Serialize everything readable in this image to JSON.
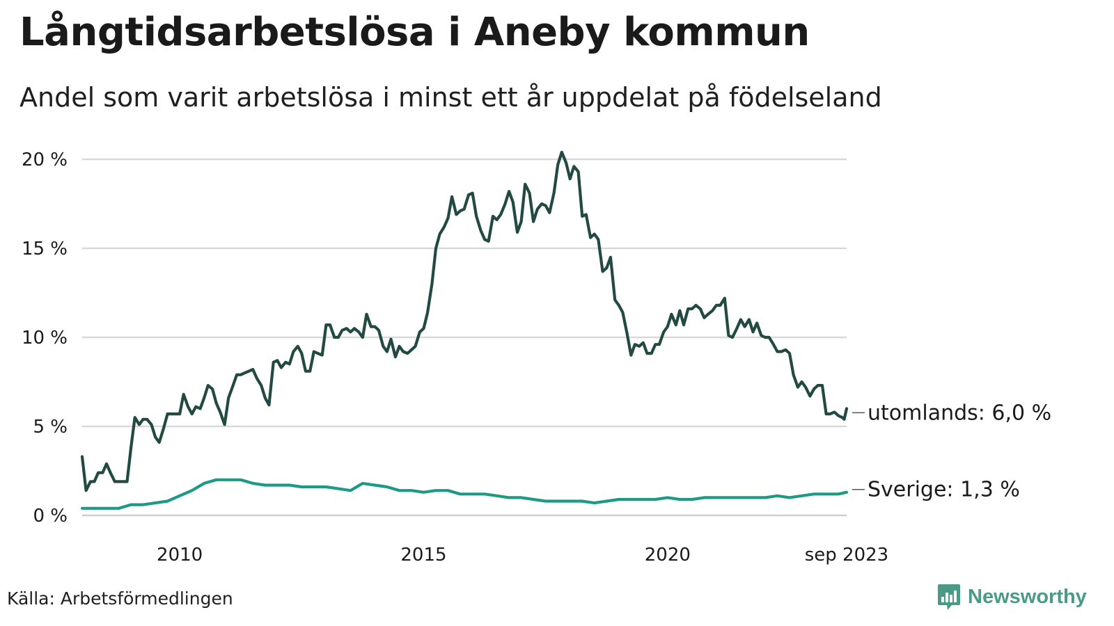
{
  "header": {
    "title": "Långtidsarbetslösa i Aneby kommun",
    "subtitle": "Andel som varit arbetslösa i minst ett år uppdelat på födelseland"
  },
  "footer": {
    "source": "Källa: Arbetsförmedlingen",
    "brand": "Newsworthy"
  },
  "colors": {
    "foreign_line": "#234a42",
    "sweden_line": "#1d9a86",
    "grid": "#d9d9d9",
    "brand": "#4a9a86"
  },
  "chart_data": {
    "type": "line",
    "title": "Långtidsarbetslösa i Aneby kommun",
    "subtitle": "Andel som varit arbetslösa i minst ett år uppdelat på födelseland",
    "xlabel": "",
    "ylabel": "",
    "xlim": [
      2008.0,
      2023.67
    ],
    "ylim": [
      0,
      20
    ],
    "grid": true,
    "y_ticks": [
      {
        "value": 0,
        "label": "0 %"
      },
      {
        "value": 5,
        "label": "5 %"
      },
      {
        "value": 10,
        "label": "10 %"
      },
      {
        "value": 15,
        "label": "15 %"
      },
      {
        "value": 20,
        "label": "20 %"
      }
    ],
    "x_ticks": [
      {
        "value": 2010.0,
        "label": "2010"
      },
      {
        "value": 2015.0,
        "label": "2015"
      },
      {
        "value": 2020.0,
        "label": "2020"
      },
      {
        "value": 2023.67,
        "label": "sep 2023"
      }
    ],
    "series": [
      {
        "name": "utomlands",
        "end_label": "utomlands: 6,0 %",
        "color": "#234a42",
        "points": [
          [
            2008.0,
            3.3
          ],
          [
            2008.08,
            1.4
          ],
          [
            2008.17,
            1.9
          ],
          [
            2008.25,
            1.9
          ],
          [
            2008.33,
            2.4
          ],
          [
            2008.42,
            2.4
          ],
          [
            2008.5,
            2.9
          ],
          [
            2008.58,
            2.4
          ],
          [
            2008.67,
            1.9
          ],
          [
            2008.75,
            1.9
          ],
          [
            2008.83,
            1.9
          ],
          [
            2008.92,
            1.9
          ],
          [
            2009.0,
            3.8
          ],
          [
            2009.08,
            5.5
          ],
          [
            2009.17,
            5.1
          ],
          [
            2009.25,
            5.4
          ],
          [
            2009.33,
            5.4
          ],
          [
            2009.42,
            5.1
          ],
          [
            2009.5,
            4.4
          ],
          [
            2009.58,
            4.1
          ],
          [
            2009.67,
            4.9
          ],
          [
            2009.75,
            5.7
          ],
          [
            2009.83,
            5.7
          ],
          [
            2009.92,
            5.7
          ],
          [
            2010.0,
            5.7
          ],
          [
            2010.08,
            6.8
          ],
          [
            2010.17,
            6.1
          ],
          [
            2010.25,
            5.7
          ],
          [
            2010.33,
            6.1
          ],
          [
            2010.42,
            6.0
          ],
          [
            2010.5,
            6.6
          ],
          [
            2010.58,
            7.3
          ],
          [
            2010.67,
            7.1
          ],
          [
            2010.75,
            6.3
          ],
          [
            2010.83,
            5.8
          ],
          [
            2010.92,
            5.1
          ],
          [
            2011.0,
            6.6
          ],
          [
            2011.08,
            7.2
          ],
          [
            2011.17,
            7.9
          ],
          [
            2011.25,
            7.9
          ],
          [
            2011.33,
            8.0
          ],
          [
            2011.42,
            8.1
          ],
          [
            2011.5,
            8.2
          ],
          [
            2011.58,
            7.7
          ],
          [
            2011.67,
            7.3
          ],
          [
            2011.75,
            6.6
          ],
          [
            2011.83,
            6.2
          ],
          [
            2011.92,
            8.6
          ],
          [
            2012.0,
            8.7
          ],
          [
            2012.08,
            8.3
          ],
          [
            2012.17,
            8.6
          ],
          [
            2012.25,
            8.5
          ],
          [
            2012.33,
            9.2
          ],
          [
            2012.42,
            9.5
          ],
          [
            2012.5,
            9.1
          ],
          [
            2012.58,
            8.1
          ],
          [
            2012.67,
            8.1
          ],
          [
            2012.75,
            9.2
          ],
          [
            2012.83,
            9.1
          ],
          [
            2012.92,
            9.0
          ],
          [
            2013.0,
            10.7
          ],
          [
            2013.08,
            10.7
          ],
          [
            2013.17,
            10.0
          ],
          [
            2013.25,
            10.0
          ],
          [
            2013.33,
            10.4
          ],
          [
            2013.42,
            10.5
          ],
          [
            2013.5,
            10.3
          ],
          [
            2013.58,
            10.5
          ],
          [
            2013.67,
            10.3
          ],
          [
            2013.75,
            10.0
          ],
          [
            2013.83,
            11.3
          ],
          [
            2013.92,
            10.6
          ],
          [
            2014.0,
            10.6
          ],
          [
            2014.08,
            10.4
          ],
          [
            2014.17,
            9.5
          ],
          [
            2014.25,
            9.2
          ],
          [
            2014.33,
            9.9
          ],
          [
            2014.42,
            8.9
          ],
          [
            2014.5,
            9.5
          ],
          [
            2014.58,
            9.2
          ],
          [
            2014.67,
            9.1
          ],
          [
            2014.75,
            9.3
          ],
          [
            2014.83,
            9.5
          ],
          [
            2014.92,
            10.3
          ],
          [
            2015.0,
            10.5
          ],
          [
            2015.08,
            11.4
          ],
          [
            2015.17,
            13.0
          ],
          [
            2015.25,
            15.0
          ],
          [
            2015.33,
            15.8
          ],
          [
            2015.42,
            16.2
          ],
          [
            2015.5,
            16.7
          ],
          [
            2015.58,
            17.9
          ],
          [
            2015.67,
            16.9
          ],
          [
            2015.75,
            17.1
          ],
          [
            2015.83,
            17.2
          ],
          [
            2015.92,
            18.0
          ],
          [
            2016.0,
            18.1
          ],
          [
            2016.08,
            16.8
          ],
          [
            2016.17,
            16.0
          ],
          [
            2016.25,
            15.5
          ],
          [
            2016.33,
            15.4
          ],
          [
            2016.42,
            16.8
          ],
          [
            2016.5,
            16.6
          ],
          [
            2016.58,
            16.9
          ],
          [
            2016.67,
            17.5
          ],
          [
            2016.75,
            18.2
          ],
          [
            2016.83,
            17.6
          ],
          [
            2016.92,
            15.9
          ],
          [
            2017.0,
            16.5
          ],
          [
            2017.08,
            18.6
          ],
          [
            2017.17,
            18.1
          ],
          [
            2017.25,
            16.5
          ],
          [
            2017.33,
            17.2
          ],
          [
            2017.42,
            17.5
          ],
          [
            2017.5,
            17.4
          ],
          [
            2017.58,
            17.0
          ],
          [
            2017.67,
            18.1
          ],
          [
            2017.75,
            19.7
          ],
          [
            2017.83,
            20.4
          ],
          [
            2017.92,
            19.8
          ],
          [
            2018.0,
            18.9
          ],
          [
            2018.08,
            19.6
          ],
          [
            2018.17,
            19.3
          ],
          [
            2018.25,
            16.8
          ],
          [
            2018.33,
            16.9
          ],
          [
            2018.42,
            15.6
          ],
          [
            2018.5,
            15.8
          ],
          [
            2018.58,
            15.5
          ],
          [
            2018.67,
            13.7
          ],
          [
            2018.75,
            13.9
          ],
          [
            2018.83,
            14.5
          ],
          [
            2018.92,
            12.1
          ],
          [
            2019.0,
            11.8
          ],
          [
            2019.08,
            11.4
          ],
          [
            2019.17,
            10.2
          ],
          [
            2019.25,
            9.0
          ],
          [
            2019.33,
            9.6
          ],
          [
            2019.42,
            9.5
          ],
          [
            2019.5,
            9.7
          ],
          [
            2019.58,
            9.1
          ],
          [
            2019.67,
            9.1
          ],
          [
            2019.75,
            9.6
          ],
          [
            2019.83,
            9.6
          ],
          [
            2019.92,
            10.3
          ],
          [
            2020.0,
            10.6
          ],
          [
            2020.08,
            11.3
          ],
          [
            2020.17,
            10.7
          ],
          [
            2020.25,
            11.5
          ],
          [
            2020.33,
            10.7
          ],
          [
            2020.42,
            11.6
          ],
          [
            2020.5,
            11.6
          ],
          [
            2020.58,
            11.8
          ],
          [
            2020.67,
            11.6
          ],
          [
            2020.75,
            11.1
          ],
          [
            2020.83,
            11.3
          ],
          [
            2020.92,
            11.5
          ],
          [
            2021.0,
            11.8
          ],
          [
            2021.08,
            11.8
          ],
          [
            2021.17,
            12.2
          ],
          [
            2021.25,
            10.1
          ],
          [
            2021.33,
            10.0
          ],
          [
            2021.42,
            10.5
          ],
          [
            2021.5,
            11.0
          ],
          [
            2021.58,
            10.6
          ],
          [
            2021.67,
            11.0
          ],
          [
            2021.75,
            10.3
          ],
          [
            2021.83,
            10.8
          ],
          [
            2021.92,
            10.1
          ],
          [
            2022.0,
            10.0
          ],
          [
            2022.08,
            10.0
          ],
          [
            2022.17,
            9.6
          ],
          [
            2022.25,
            9.2
          ],
          [
            2022.33,
            9.2
          ],
          [
            2022.42,
            9.3
          ],
          [
            2022.5,
            9.1
          ],
          [
            2022.58,
            7.9
          ],
          [
            2022.67,
            7.2
          ],
          [
            2022.75,
            7.5
          ],
          [
            2022.83,
            7.2
          ],
          [
            2022.92,
            6.7
          ],
          [
            2023.0,
            7.1
          ],
          [
            2023.08,
            7.3
          ],
          [
            2023.17,
            7.3
          ],
          [
            2023.25,
            5.7
          ],
          [
            2023.33,
            5.7
          ],
          [
            2023.42,
            5.8
          ],
          [
            2023.5,
            5.6
          ],
          [
            2023.58,
            5.5
          ],
          [
            2023.62,
            5.4
          ],
          [
            2023.67,
            6.0
          ]
        ]
      },
      {
        "name": "Sverige",
        "end_label": "Sverige: 1,3 %",
        "color": "#1d9a86",
        "points": [
          [
            2008.0,
            0.4
          ],
          [
            2008.25,
            0.4
          ],
          [
            2008.5,
            0.4
          ],
          [
            2008.75,
            0.4
          ],
          [
            2009.0,
            0.6
          ],
          [
            2009.25,
            0.6
          ],
          [
            2009.5,
            0.7
          ],
          [
            2009.75,
            0.8
          ],
          [
            2010.0,
            1.1
          ],
          [
            2010.25,
            1.4
          ],
          [
            2010.5,
            1.8
          ],
          [
            2010.75,
            2.0
          ],
          [
            2011.0,
            2.0
          ],
          [
            2011.25,
            2.0
          ],
          [
            2011.5,
            1.8
          ],
          [
            2011.75,
            1.7
          ],
          [
            2012.0,
            1.7
          ],
          [
            2012.25,
            1.7
          ],
          [
            2012.5,
            1.6
          ],
          [
            2012.75,
            1.6
          ],
          [
            2013.0,
            1.6
          ],
          [
            2013.25,
            1.5
          ],
          [
            2013.5,
            1.4
          ],
          [
            2013.75,
            1.8
          ],
          [
            2014.0,
            1.7
          ],
          [
            2014.25,
            1.6
          ],
          [
            2014.5,
            1.4
          ],
          [
            2014.75,
            1.4
          ],
          [
            2015.0,
            1.3
          ],
          [
            2015.25,
            1.4
          ],
          [
            2015.5,
            1.4
          ],
          [
            2015.75,
            1.2
          ],
          [
            2016.0,
            1.2
          ],
          [
            2016.25,
            1.2
          ],
          [
            2016.5,
            1.1
          ],
          [
            2016.75,
            1.0
          ],
          [
            2017.0,
            1.0
          ],
          [
            2017.25,
            0.9
          ],
          [
            2017.5,
            0.8
          ],
          [
            2017.75,
            0.8
          ],
          [
            2018.0,
            0.8
          ],
          [
            2018.25,
            0.8
          ],
          [
            2018.5,
            0.7
          ],
          [
            2018.75,
            0.8
          ],
          [
            2019.0,
            0.9
          ],
          [
            2019.25,
            0.9
          ],
          [
            2019.5,
            0.9
          ],
          [
            2019.75,
            0.9
          ],
          [
            2020.0,
            1.0
          ],
          [
            2020.25,
            0.9
          ],
          [
            2020.5,
            0.9
          ],
          [
            2020.75,
            1.0
          ],
          [
            2021.0,
            1.0
          ],
          [
            2021.25,
            1.0
          ],
          [
            2021.5,
            1.0
          ],
          [
            2021.75,
            1.0
          ],
          [
            2022.0,
            1.0
          ],
          [
            2022.25,
            1.1
          ],
          [
            2022.5,
            1.0
          ],
          [
            2022.75,
            1.1
          ],
          [
            2023.0,
            1.2
          ],
          [
            2023.25,
            1.2
          ],
          [
            2023.5,
            1.2
          ],
          [
            2023.67,
            1.3
          ]
        ]
      }
    ]
  }
}
